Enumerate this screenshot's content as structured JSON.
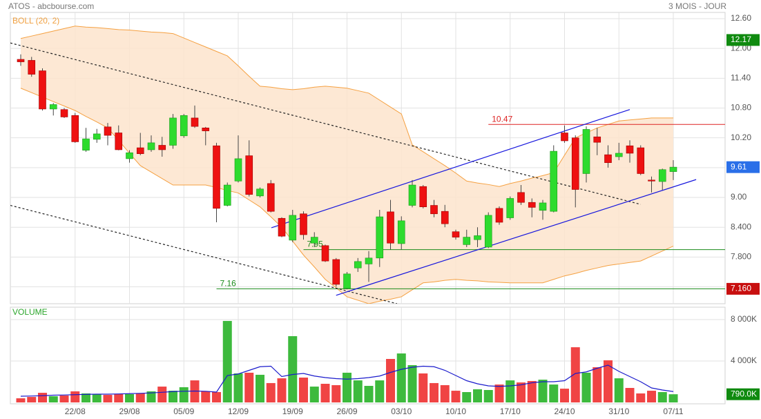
{
  "chart_data": [
    {
      "type": "candlestick",
      "title": "ATOS - abcbourse.com",
      "subtitle": "3 MOIS - JOUR",
      "indicator_label": "BOLL (20, 2)",
      "categories": [
        null,
        null,
        null,
        null,
        null,
        "22/08",
        null,
        null,
        null,
        null,
        "29/08",
        null,
        null,
        null,
        null,
        "05/09",
        null,
        null,
        null,
        null,
        "12/09",
        null,
        null,
        null,
        null,
        "19/09",
        null,
        null,
        null,
        null,
        "26/09",
        null,
        null,
        null,
        null,
        "03/10",
        null,
        null,
        null,
        null,
        "10/10",
        null,
        null,
        null,
        null,
        "17/10",
        null,
        null,
        null,
        null,
        "24/10",
        null,
        null,
        null,
        null,
        "31/10",
        null,
        null,
        null,
        null,
        "07/11"
      ],
      "open": [
        11.78,
        11.76,
        11.55,
        10.78,
        10.77,
        10.65,
        9.95,
        10.17,
        10.42,
        10.3,
        9.78,
        10.0,
        9.96,
        10.05,
        10.05,
        10.24,
        10.6,
        10.4,
        10.04,
        8.84,
        9.33,
        9.84,
        9.03,
        9.28,
        8.58,
        8.14,
        8.67,
        8.08,
        8.03,
        7.75,
        7.17,
        7.58,
        7.66,
        7.78,
        8.71,
        8.07,
        8.84,
        9.22,
        8.84,
        8.72,
        8.31,
        8.05,
        8.15,
        8.0,
        8.78,
        8.59,
        9.1,
        8.9,
        8.74,
        8.72,
        10.3,
        10.2,
        9.48,
        10.22,
        9.86,
        9.82,
        10.04,
        10.0,
        9.35,
        9.32,
        9.52
      ],
      "high": [
        11.88,
        11.83,
        11.6,
        10.9,
        10.8,
        10.7,
        10.4,
        10.38,
        10.5,
        10.45,
        9.95,
        10.3,
        10.25,
        10.22,
        10.68,
        10.68,
        10.85,
        10.42,
        10.1,
        9.3,
        10.25,
        10.15,
        9.2,
        9.35,
        8.6,
        8.75,
        8.72,
        8.3,
        8.05,
        7.78,
        7.5,
        7.78,
        7.92,
        8.75,
        8.95,
        8.62,
        9.35,
        9.25,
        8.95,
        8.85,
        8.35,
        8.35,
        8.4,
        8.7,
        8.82,
        9.02,
        9.25,
        8.98,
        8.95,
        10.05,
        10.45,
        10.25,
        10.43,
        10.4,
        10.05,
        10.1,
        10.15,
        10.05,
        9.42,
        9.58,
        9.75
      ],
      "low": [
        11.65,
        11.43,
        10.75,
        10.65,
        10.6,
        10.1,
        9.92,
        10.1,
        10.05,
        9.95,
        9.7,
        9.85,
        9.92,
        9.82,
        9.98,
        10.2,
        10.4,
        10.05,
        8.5,
        8.82,
        9.3,
        9.02,
        9.0,
        8.7,
        8.2,
        8.1,
        8.15,
        8.0,
        7.7,
        7.2,
        7.15,
        7.5,
        7.3,
        7.6,
        7.95,
        7.95,
        8.8,
        8.78,
        8.6,
        8.4,
        8.15,
        8.0,
        8.0,
        7.98,
        8.45,
        8.55,
        8.85,
        8.6,
        8.55,
        8.7,
        10.1,
        8.8,
        9.3,
        9.85,
        9.6,
        9.75,
        9.7,
        9.45,
        9.1,
        9.15,
        9.35
      ],
      "close": [
        11.73,
        11.48,
        10.78,
        10.87,
        10.62,
        10.12,
        10.18,
        10.28,
        10.25,
        9.96,
        9.9,
        9.88,
        10.1,
        9.96,
        10.6,
        10.65,
        10.43,
        10.34,
        8.78,
        9.25,
        9.78,
        9.06,
        9.17,
        8.72,
        8.22,
        8.64,
        8.25,
        8.2,
        7.72,
        7.25,
        7.46,
        7.71,
        7.78,
        8.61,
        8.08,
        8.53,
        9.25,
        8.81,
        8.67,
        8.47,
        8.2,
        8.2,
        8.23,
        8.64,
        8.5,
        8.98,
        8.9,
        8.8,
        8.89,
        9.93,
        10.14,
        9.16,
        10.37,
        10.11,
        9.7,
        9.89,
        9.89,
        9.48,
        9.33,
        9.56,
        9.61
      ],
      "up_color": "#2edb2e",
      "down_color": "#ee1111",
      "ylim": [
        6.86,
        12.725
      ],
      "yticks": [
        {
          "value": 12.6,
          "label": "12.60"
        },
        {
          "value": 12.0,
          "label": "12.00"
        },
        {
          "value": 11.4,
          "label": "11.40"
        },
        {
          "value": 10.8,
          "label": "10.80"
        },
        {
          "value": 10.2,
          "label": "10.20"
        },
        {
          "value": 9.6,
          "label": "9.60"
        },
        {
          "value": 9.0,
          "label": "9.00"
        },
        {
          "value": 8.4,
          "label": "8.400"
        },
        {
          "value": 7.8,
          "label": "7.800"
        },
        {
          "value": 7.2,
          "label": "7.200"
        }
      ],
      "grid": true,
      "bollinger": {
        "color": "#f5a040",
        "fill": "#fde4cc",
        "upper": [
          12.2,
          12.25,
          12.3,
          12.35,
          12.4,
          12.45,
          12.43,
          12.42,
          12.4,
          12.38,
          12.37,
          12.35,
          12.33,
          12.32,
          12.3,
          12.21,
          12.12,
          12.03,
          11.94,
          11.85,
          11.65,
          11.44,
          11.24,
          11.22,
          11.19,
          11.17,
          11.19,
          11.22,
          11.24,
          11.22,
          11.2,
          11.15,
          11.1,
          10.96,
          10.82,
          10.68,
          10.06,
          9.92,
          9.78,
          9.64,
          9.49,
          9.33,
          9.29,
          9.26,
          9.22,
          9.28,
          9.33,
          9.39,
          9.44,
          9.5,
          9.85,
          10.2,
          10.3,
          10.4,
          10.47,
          10.54,
          10.56,
          10.58,
          10.6,
          10.6,
          10.6
        ],
        "lower": [
          11.2,
          11.11,
          11.02,
          10.93,
          10.84,
          10.75,
          10.63,
          10.52,
          10.4,
          10.15,
          9.89,
          9.64,
          9.51,
          9.38,
          9.25,
          9.25,
          9.25,
          9.25,
          9.2,
          9.14,
          9.09,
          8.95,
          8.81,
          8.61,
          8.4,
          8.12,
          7.84,
          7.6,
          7.35,
          7.18,
          7.0,
          6.93,
          6.86,
          6.91,
          6.95,
          7.0,
          7.14,
          7.28,
          7.3,
          7.33,
          7.35,
          7.33,
          7.32,
          7.3,
          7.29,
          7.28,
          7.28,
          7.28,
          7.28,
          7.35,
          7.42,
          7.47,
          7.53,
          7.58,
          7.63,
          7.66,
          7.69,
          7.72,
          7.82,
          7.92,
          8.02
        ]
      },
      "trend_lines": [
        {
          "x": [
            -0.95,
            57
          ],
          "y": [
            12.11,
            8.86
          ],
          "color": "#222222",
          "dashed": true
        },
        {
          "x": [
            -0.95,
            34.6
          ],
          "y": [
            8.84,
            6.86
          ],
          "color": "#222222",
          "dashed": true
        },
        {
          "x": [
            23.05,
            56
          ],
          "y": [
            8.39,
            10.77
          ],
          "color": "#1515dd",
          "dashed": false
        },
        {
          "x": [
            29.0,
            62.1
          ],
          "y": [
            7.03,
            9.36
          ],
          "color": "#1515dd",
          "dashed": false
        }
      ],
      "levels": [
        {
          "value": 10.47,
          "color": "#dd2222",
          "start": 43
        },
        {
          "value": 7.95,
          "color": "#1a8a1a",
          "start": 26
        },
        {
          "value": 7.16,
          "color": "#1a8a1a",
          "start": 18
        }
      ],
      "markers": [
        {
          "value": 12.17,
          "color": "#0f8a0f"
        },
        {
          "value": 9.61,
          "color": "#2a6fe8"
        },
        {
          "value": 7.16,
          "label": "7.160",
          "color": "#c80f0f"
        }
      ]
    },
    {
      "type": "bar",
      "title": "VOLUME",
      "values": [
        400,
        530,
        930,
        600,
        670,
        1070,
        870,
        800,
        730,
        800,
        800,
        870,
        1070,
        1530,
        1130,
        1470,
        2130,
        1070,
        1000,
        7870,
        2800,
        2870,
        2670,
        1870,
        2330,
        6400,
        2400,
        1530,
        1800,
        1670,
        2870,
        2130,
        1600,
        2130,
        4200,
        4730,
        3600,
        2800,
        1870,
        1670,
        1130,
        1000,
        1270,
        1200,
        1730,
        2130,
        1930,
        2070,
        2200,
        1730,
        1330,
        5330,
        2870,
        3400,
        4070,
        2330,
        1400,
        870,
        1130,
        1000,
        790
      ],
      "up_color": "#3dba3d",
      "down_color": "#f04444",
      "ylim": [
        0,
        9200
      ],
      "yticks": [
        {
          "value": 8000,
          "label": "8 000K"
        },
        {
          "value": 4000,
          "label": "4 000K"
        }
      ],
      "grid": true,
      "ma": {
        "color": "#1a1acc",
        "values": [
          600,
          620,
          650,
          700,
          720,
          750,
          780,
          800,
          800,
          820,
          850,
          880,
          920,
          980,
          1050,
          1080,
          1100,
          1080,
          1000,
          2600,
          2750,
          3100,
          3450,
          3500,
          2500,
          2700,
          2800,
          2550,
          2400,
          2300,
          2250,
          2300,
          2400,
          2550,
          2900,
          3200,
          3400,
          3500,
          3450,
          3100,
          2600,
          2100,
          1800,
          1600,
          1550,
          1600,
          1700,
          1900,
          2000,
          2000,
          2100,
          2800,
          2950,
          3300,
          3600,
          3000,
          2500,
          2000,
          1400,
          1200,
          1050
        ]
      },
      "markers": [
        {
          "value": 790,
          "label": "790.0K",
          "color": "#0f8a0f"
        }
      ]
    }
  ]
}
